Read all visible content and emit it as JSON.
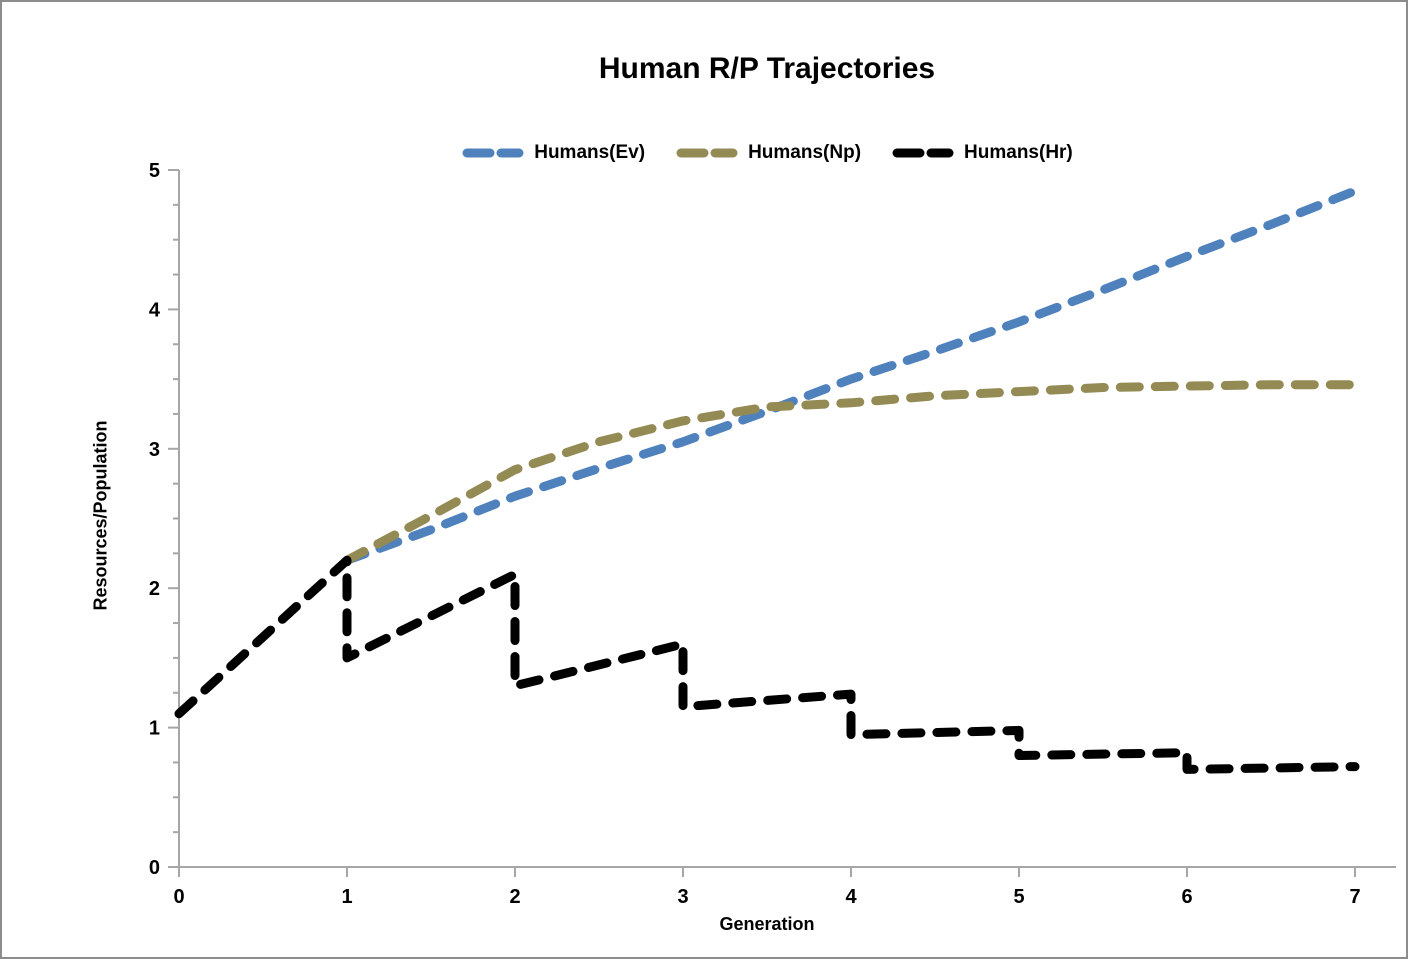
{
  "window": {
    "background": "#ffffff",
    "border_color": "#8c8c8c"
  },
  "axis_color": "#a6a6a6",
  "chart_data": {
    "type": "line",
    "title": "Human R/P Trajectories",
    "xlabel": "Generation",
    "ylabel": "Resources/Population",
    "xlim": [
      0,
      7
    ],
    "ylim": [
      0,
      5
    ],
    "x_ticks": [
      0,
      1,
      2,
      3,
      4,
      5,
      6,
      7
    ],
    "y_ticks": [
      0,
      1,
      2,
      3,
      4,
      5
    ],
    "y_minor_step": 0.25,
    "grid": false,
    "legend_position": "top-center",
    "line_style": "dashed",
    "series": [
      {
        "name": "Humans(Ev)",
        "color": "#4F81BD",
        "points": [
          [
            1,
            2.2
          ],
          [
            1.5,
            2.42
          ],
          [
            2,
            2.66
          ],
          [
            2.5,
            2.86
          ],
          [
            3,
            3.05
          ],
          [
            3.5,
            3.27
          ],
          [
            4,
            3.5
          ],
          [
            4.5,
            3.7
          ],
          [
            5,
            3.91
          ],
          [
            5.5,
            4.14
          ],
          [
            6,
            4.38
          ],
          [
            6.5,
            4.61
          ],
          [
            7,
            4.85
          ]
        ]
      },
      {
        "name": "Humans(Np)",
        "color": "#948A54",
        "points": [
          [
            1,
            2.2
          ],
          [
            1.5,
            2.52
          ],
          [
            2,
            2.85
          ],
          [
            2.5,
            3.05
          ],
          [
            3,
            3.2
          ],
          [
            3.5,
            3.3
          ],
          [
            4,
            3.33
          ],
          [
            4.5,
            3.38
          ],
          [
            5,
            3.41
          ],
          [
            5.5,
            3.44
          ],
          [
            6,
            3.45
          ],
          [
            6.5,
            3.46
          ],
          [
            7,
            3.46
          ]
        ]
      },
      {
        "name": "Humans(Hr)",
        "color": "#000000",
        "points": [
          [
            0,
            1.1
          ],
          [
            1,
            2.2
          ],
          [
            1,
            1.5
          ],
          [
            2,
            2.1
          ],
          [
            2,
            1.3
          ],
          [
            3,
            1.6
          ],
          [
            3,
            1.15
          ],
          [
            4,
            1.24
          ],
          [
            4,
            0.95
          ],
          [
            5,
            0.98
          ],
          [
            5,
            0.8
          ],
          [
            6,
            0.82
          ],
          [
            6,
            0.7
          ],
          [
            7,
            0.72
          ]
        ]
      }
    ]
  }
}
